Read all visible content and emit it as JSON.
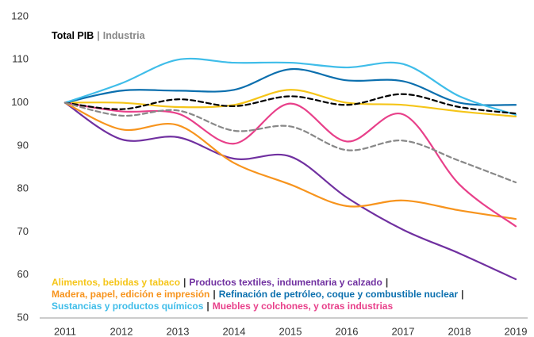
{
  "chart_data": {
    "type": "line",
    "categories": [
      "2011",
      "2012",
      "2013",
      "2014",
      "2015",
      "2016",
      "2017",
      "2018",
      "2019"
    ],
    "ylim": [
      50,
      120
    ],
    "yticks": [
      50,
      60,
      70,
      80,
      90,
      100,
      110,
      120
    ],
    "grid": false,
    "separator": "|",
    "series": [
      {
        "name": "Total PIB",
        "color": "#000000",
        "dashed": true,
        "values": [
          100,
          98.5,
          100.8,
          99.2,
          101.5,
          99.5,
          102,
          99,
          97.5
        ]
      },
      {
        "name": "Industria",
        "color": "#888888",
        "dashed": true,
        "values": [
          100,
          97,
          98.2,
          93.5,
          94.5,
          89,
          91.2,
          86.5,
          81.5
        ]
      },
      {
        "name": "Alimentos, bebidas y tabaco",
        "color": "#f5c518",
        "values": [
          100,
          100,
          99,
          99.5,
          103,
          100,
          99.5,
          98,
          96.8
        ]
      },
      {
        "name": "Productos textiles, indumentaria y calzado",
        "color": "#7030a0",
        "values": [
          100,
          91.5,
          92,
          87,
          87.5,
          78,
          70.5,
          65,
          59
        ]
      },
      {
        "name": "Madera, papel, edición e impresión",
        "color": "#f7941d",
        "values": [
          100,
          93.8,
          94.8,
          86,
          81,
          76,
          77.3,
          75,
          73
        ]
      },
      {
        "name": "Refinación de petróleo, coque y combustible nuclear",
        "color": "#0b6fae",
        "values": [
          100,
          102.8,
          102.8,
          103,
          107.8,
          105.2,
          105,
          100,
          99.5
        ]
      },
      {
        "name": "Sustancias y productos químicos",
        "color": "#3fbde9",
        "values": [
          100,
          104.5,
          110,
          109.3,
          109.3,
          108.2,
          109,
          101.5,
          97.2
        ]
      },
      {
        "name": "Muebles y colchones, y otras industrias",
        "color": "#e8408a",
        "values": [
          100,
          98,
          97.5,
          90.5,
          99.8,
          91,
          97.3,
          81,
          71.3
        ]
      }
    ]
  }
}
